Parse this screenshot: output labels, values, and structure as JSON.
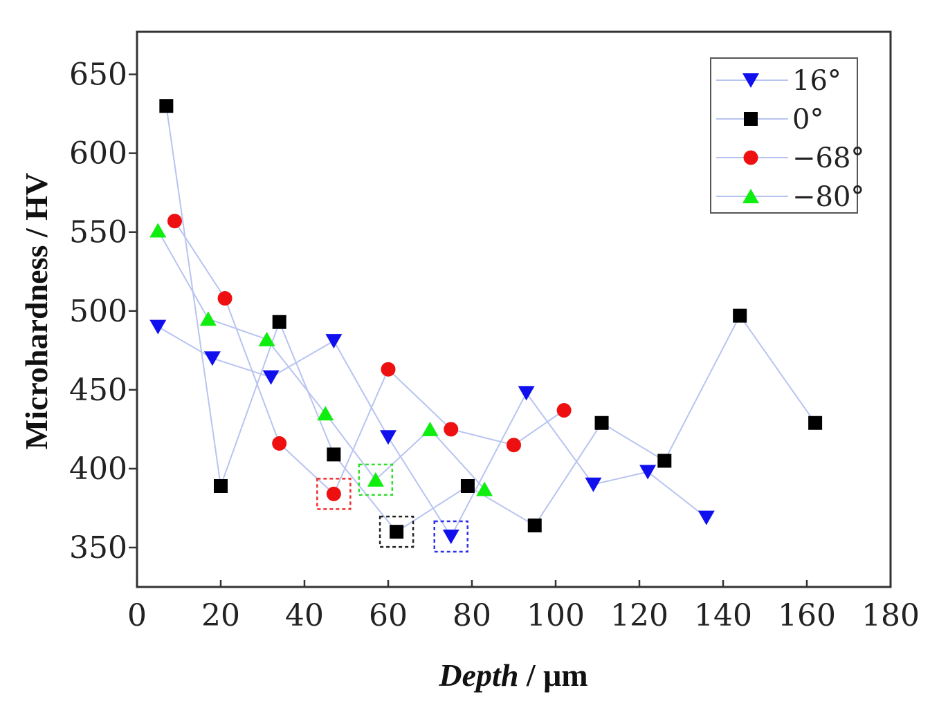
{
  "chart_data": {
    "type": "scatter",
    "title": "",
    "xlabel_italic": "Depth",
    "xlabel_rest": " / μm",
    "ylabel": "Microhardness / HV",
    "xlim": [
      0,
      180
    ],
    "ylim": [
      325,
      677
    ],
    "xticks": [
      0,
      20,
      40,
      60,
      80,
      100,
      120,
      140,
      160,
      180
    ],
    "yticks": [
      350,
      400,
      450,
      500,
      550,
      600,
      650
    ],
    "grid": false,
    "legend_position": "top-right",
    "line_color": "#b8c4f0",
    "series": [
      {
        "name": "16°",
        "marker": "triangle-down",
        "color": "#1010ee",
        "points": [
          [
            5,
            490
          ],
          [
            18,
            470
          ],
          [
            32,
            458
          ],
          [
            47,
            481
          ],
          [
            60,
            420
          ],
          [
            75,
            357
          ],
          [
            93,
            448
          ],
          [
            109,
            390
          ],
          [
            122,
            398
          ],
          [
            136,
            369
          ]
        ],
        "highlight_index": 5,
        "highlight_color": "#3030ee"
      },
      {
        "name": "0°",
        "marker": "square",
        "color": "#000000",
        "points": [
          [
            7,
            630
          ],
          [
            20,
            389
          ],
          [
            34,
            493
          ],
          [
            47,
            409
          ],
          [
            62,
            360
          ],
          [
            79,
            389
          ],
          [
            95,
            364
          ],
          [
            111,
            429
          ],
          [
            126,
            405
          ],
          [
            144,
            497
          ],
          [
            162,
            429
          ]
        ],
        "highlight_index": 4,
        "highlight_color": "#222222"
      },
      {
        "name": "−68°",
        "marker": "circle",
        "color": "#ee1010",
        "points": [
          [
            9,
            557
          ],
          [
            21,
            508
          ],
          [
            34,
            416
          ],
          [
            47,
            384
          ],
          [
            60,
            463
          ],
          [
            75,
            425
          ],
          [
            90,
            415
          ],
          [
            102,
            437
          ]
        ],
        "highlight_index": 3,
        "highlight_color": "#ee3030"
      },
      {
        "name": "−80°",
        "marker": "triangle-up",
        "color": "#10ee10",
        "points": [
          [
            5,
            551
          ],
          [
            17,
            495
          ],
          [
            31,
            482
          ],
          [
            45,
            435
          ],
          [
            57,
            393
          ],
          [
            70,
            425
          ],
          [
            83,
            387
          ]
        ],
        "highlight_index": 4,
        "highlight_color": "#30dd30"
      }
    ]
  }
}
